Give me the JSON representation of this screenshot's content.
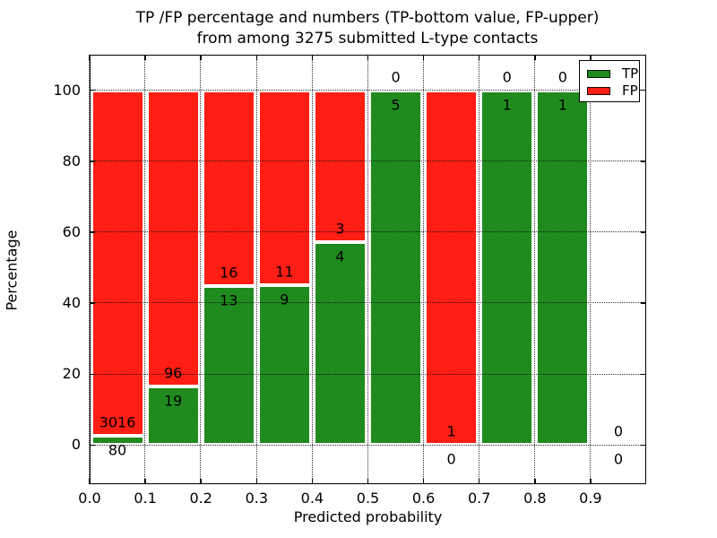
{
  "figure": {
    "title_line1": "TP /FP percentage and numbers (TP-bottom value, FP-upper)",
    "title_line2": "from among 3275 submitted L-type contacts"
  },
  "chart_data": {
    "type": "bar",
    "variant": "stacked-percentage",
    "title": "TP /FP percentage and numbers (TP-bottom value, FP-upper) from among 3275 submitted L-type contacts",
    "xlabel": "Predicted probability",
    "ylabel": "Percentage",
    "total_submitted": 3275,
    "bin_width": 0.1,
    "bin_starts": [
      0.0,
      0.1,
      0.2,
      0.3,
      0.4,
      0.5,
      0.6,
      0.7,
      0.8,
      0.9
    ],
    "series": [
      {
        "name": "TP",
        "color": "#1f8b1f",
        "values": [
          80,
          19,
          13,
          9,
          4,
          5,
          0,
          1,
          1,
          0
        ]
      },
      {
        "name": "FP",
        "color": "#ff1e14",
        "values": [
          3016,
          96,
          16,
          11,
          3,
          0,
          1,
          0,
          0,
          0
        ]
      }
    ],
    "xticks": [
      "0.0",
      "0.1",
      "0.2",
      "0.3",
      "0.4",
      "0.5",
      "0.6",
      "0.7",
      "0.8",
      "0.9"
    ],
    "yticks": [
      0,
      20,
      40,
      60,
      80,
      100
    ],
    "xlim": [
      0,
      1.0
    ],
    "ylim": [
      -11,
      110
    ],
    "grid": "dotted-both-axes",
    "legend": {
      "position": "upper-right",
      "entries": [
        "TP",
        "FP"
      ]
    }
  }
}
